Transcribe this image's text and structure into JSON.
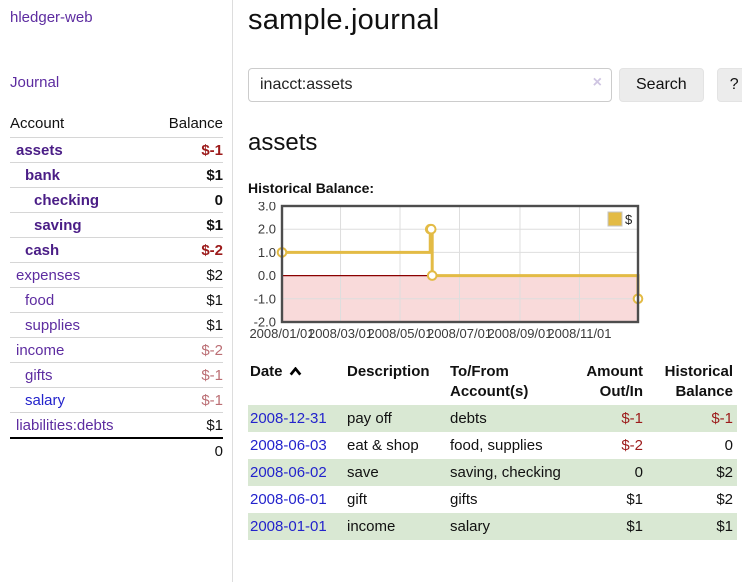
{
  "app": {
    "brand": "hledger-web"
  },
  "nav": {
    "journal": "Journal"
  },
  "sidebar": {
    "header": {
      "account": "Account",
      "balance": "Balance"
    },
    "accounts": [
      {
        "name": "assets",
        "depth": 1,
        "bold": true,
        "balance": "$-1",
        "negative": true
      },
      {
        "name": "bank",
        "depth": 2,
        "bold": true,
        "balance": "$1",
        "negative": false
      },
      {
        "name": "checking",
        "depth": 3,
        "bold": true,
        "balance": "0",
        "negative": false
      },
      {
        "name": "saving",
        "depth": 3,
        "bold": true,
        "balance": "$1",
        "negative": false
      },
      {
        "name": "cash",
        "depth": 2,
        "bold": true,
        "balance": "$-2",
        "negative": true
      },
      {
        "name": "expenses",
        "depth": 1,
        "bold": false,
        "balance": "$2",
        "negative": false
      },
      {
        "name": "food",
        "depth": 2,
        "bold": false,
        "balance": "$1",
        "negative": false
      },
      {
        "name": "supplies",
        "depth": 2,
        "bold": false,
        "balance": "$1",
        "negative": false
      },
      {
        "name": "income",
        "depth": 1,
        "bold": false,
        "balance": "$-2",
        "negative": true
      },
      {
        "name": "gifts",
        "depth": 2,
        "bold": false,
        "balance": "$-1",
        "negative": true
      },
      {
        "name": "salary",
        "depth": 2,
        "bold": false,
        "balance": "$-1",
        "negative": true,
        "blue_link": true
      },
      {
        "name": "liabilities:debts",
        "depth": 1,
        "bold": false,
        "balance": "$1",
        "negative": false
      }
    ],
    "total": "0"
  },
  "header": {
    "title": "sample.journal"
  },
  "search": {
    "value": "inacct:assets",
    "clear_icon": "×",
    "button_label": "Search",
    "help_label": "?"
  },
  "account_page": {
    "title": "assets",
    "chart_label": "Historical Balance:"
  },
  "chart_data": {
    "type": "line",
    "step": true,
    "title": "Historical Balance",
    "series": [
      {
        "name": "$",
        "points": [
          [
            "2008-01-01",
            1
          ],
          [
            "2008-06-01",
            2
          ],
          [
            "2008-06-02",
            2
          ],
          [
            "2008-06-03",
            0
          ],
          [
            "2008-12-31",
            -1
          ]
        ]
      }
    ],
    "x_ticks": [
      "2008/01/01",
      "2008/03/01",
      "2008/05/01",
      "2008/07/01",
      "2008/09/01",
      "2008/11/01"
    ],
    "y_ticks": [
      "3.0",
      "2.0",
      "1.0",
      "0.0",
      "-1.0",
      "-2.0"
    ],
    "ylim": [
      -2,
      3
    ],
    "xlim": [
      "2008-01-01",
      "2008-12-31"
    ],
    "grid": true,
    "legend": {
      "label": "$",
      "position": "top-right"
    }
  },
  "register": {
    "columns": [
      {
        "label": "Date",
        "sorted": "asc"
      },
      {
        "label": "Description"
      },
      {
        "label": "To/From Account(s)"
      },
      {
        "label": "Amount Out/In",
        "align": "right"
      },
      {
        "label": "Historical Balance",
        "align": "right"
      }
    ],
    "rows": [
      {
        "date": "2008-12-31",
        "description": "pay off",
        "accounts": "debts",
        "amount": "$-1",
        "amount_negative": true,
        "balance": "$-1",
        "balance_negative": true
      },
      {
        "date": "2008-06-03",
        "description": "eat & shop",
        "accounts": "food, supplies",
        "amount": "$-2",
        "amount_negative": true,
        "balance": "0",
        "balance_negative": false
      },
      {
        "date": "2008-06-02",
        "description": "save",
        "accounts": "saving, checking",
        "amount": "0",
        "amount_negative": false,
        "balance": "$2",
        "balance_negative": false
      },
      {
        "date": "2008-06-01",
        "description": "gift",
        "accounts": "gifts",
        "amount": "$1",
        "amount_negative": false,
        "balance": "$2",
        "balance_negative": false
      },
      {
        "date": "2008-01-01",
        "description": "income",
        "accounts": "salary",
        "amount": "$1",
        "amount_negative": false,
        "balance": "$1",
        "balance_negative": false
      }
    ]
  },
  "colors": {
    "link_purple": "#5d2ca0",
    "link_purple_bold": "#4a1d86",
    "link_blue": "#2323cc",
    "negative_strong": "#9c1a1a",
    "negative_soft": "#bb6e74",
    "stripe_green": "#d9e8d3",
    "series_gold": "#e3bb45",
    "negative_region": "#f9dada",
    "zero_line": "#8b0000",
    "chart_border": "#4d4d4d",
    "grid_line": "#dedede"
  }
}
